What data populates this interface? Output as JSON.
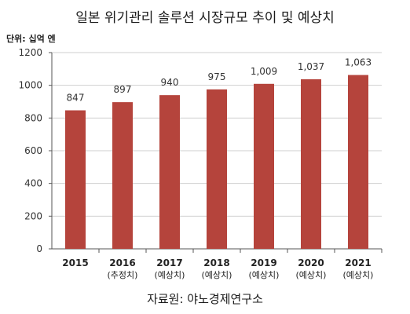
{
  "title": "일본 위기관리 솔루션 시장규모 추이 및 예상치",
  "unit_label": "단위: 십억 엔",
  "source": "자료원: 야노경제연구소",
  "chart_data": {
    "type": "bar",
    "categories": [
      "2015",
      "2016",
      "2017",
      "2018",
      "2019",
      "2020",
      "2021"
    ],
    "category_notes": [
      "",
      "(추정치)",
      "(예상치)",
      "(예상치)",
      "(예상치)",
      "(예상치)",
      "(예상치)"
    ],
    "values": [
      847,
      897,
      940,
      975,
      1009,
      1037,
      1063
    ],
    "value_labels": [
      "847",
      "897",
      "940",
      "975",
      "1,009",
      "1,037",
      "1,063"
    ],
    "yticks": [
      "0",
      "200",
      "400",
      "600",
      "800",
      "1000",
      "1200"
    ],
    "ylim": [
      0,
      1200
    ],
    "bar_color": "#b5443c",
    "grid": true
  }
}
